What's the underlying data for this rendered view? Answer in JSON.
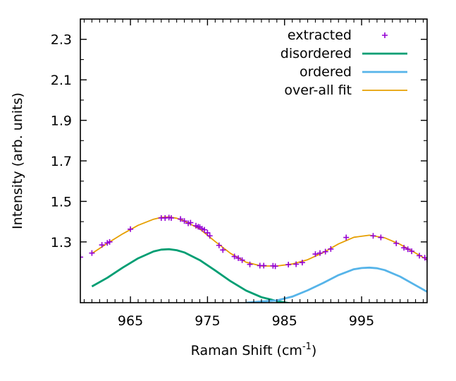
{
  "chart_data": {
    "type": "line",
    "xlabel": "Raman Shift (cm",
    "xlabel_sup": "-1",
    "xlabel_suffix": ")",
    "ylabel": "Intensity (arb. units)",
    "xlim": [
      958.5,
      1003.5
    ],
    "ylim": [
      1.0,
      2.4
    ],
    "xticks": [
      965,
      975,
      985,
      995
    ],
    "xtick_labels": [
      "965",
      "975",
      "985",
      "995"
    ],
    "yticks": [
      1.3,
      1.5,
      1.7,
      1.9,
      2.1,
      2.3
    ],
    "ytick_labels": [
      "1.3",
      "1.5",
      "1.7",
      "1.9",
      "2.1",
      "2.3"
    ],
    "legend_position": "top-right",
    "series": [
      {
        "name": "extracted",
        "kind": "scatter",
        "color": "#9400d3",
        "x": [
          958.5,
          960.0,
          961.3,
          962.0,
          962.3,
          965.0,
          969.0,
          969.5,
          970.0,
          970.3,
          971.5,
          972.0,
          972.5,
          972.8,
          973.5,
          973.8,
          974.0,
          974.3,
          974.6,
          975.0,
          975.3,
          976.5,
          977.0,
          978.5,
          979.0,
          979.5,
          980.5,
          981.8,
          982.3,
          983.5,
          983.8,
          985.5,
          986.5,
          987.3,
          989.0,
          989.6,
          990.3,
          991.0,
          993.0,
          996.5,
          997.5,
          999.5,
          1000.5,
          1001.0,
          1001.5,
          1002.5,
          1003.2,
          1003.5
        ],
        "y": [
          1.225,
          1.245,
          1.285,
          1.295,
          1.3,
          1.363,
          1.418,
          1.418,
          1.42,
          1.418,
          1.413,
          1.403,
          1.392,
          1.395,
          1.38,
          1.375,
          1.373,
          1.365,
          1.36,
          1.345,
          1.33,
          1.283,
          1.26,
          1.228,
          1.22,
          1.21,
          1.189,
          1.183,
          1.183,
          1.182,
          1.18,
          1.188,
          1.19,
          1.198,
          1.24,
          1.245,
          1.252,
          1.265,
          1.322,
          1.33,
          1.322,
          1.293,
          1.271,
          1.264,
          1.254,
          1.232,
          1.222,
          1.213
        ]
      },
      {
        "name": "disordered",
        "kind": "line",
        "color": "#009e73",
        "x": [
          960,
          962,
          964,
          966,
          968,
          969,
          970,
          971,
          972,
          974,
          976,
          978,
          980,
          982,
          984,
          986,
          988
        ],
        "y": [
          1.08,
          1.123,
          1.173,
          1.219,
          1.253,
          1.262,
          1.264,
          1.259,
          1.248,
          1.21,
          1.159,
          1.106,
          1.06,
          1.027,
          1.008,
          0.995,
          0.99
        ]
      },
      {
        "name": "ordered",
        "kind": "line",
        "color": "#56b4e9",
        "x": [
          980,
          982,
          984,
          986,
          988,
          990,
          992,
          994,
          995,
          996,
          997,
          998,
          1000,
          1002,
          1003.5
        ],
        "y": [
          1.0,
          1.006,
          1.011,
          1.03,
          1.061,
          1.097,
          1.136,
          1.165,
          1.171,
          1.173,
          1.17,
          1.161,
          1.129,
          1.086,
          1.054
        ]
      },
      {
        "name": "over-all fit",
        "kind": "line",
        "color": "#e69f00",
        "x": [
          960,
          962,
          964,
          966,
          968,
          969,
          970,
          971,
          972,
          974,
          976,
          978,
          980,
          982,
          984,
          986,
          988,
          990,
          992,
          994,
          996,
          998,
          1000,
          1002,
          1003.5
        ],
        "y": [
          1.243,
          1.293,
          1.34,
          1.382,
          1.412,
          1.421,
          1.423,
          1.417,
          1.403,
          1.364,
          1.302,
          1.243,
          1.2,
          1.181,
          1.181,
          1.191,
          1.212,
          1.247,
          1.29,
          1.323,
          1.333,
          1.32,
          1.288,
          1.245,
          1.212
        ]
      }
    ]
  }
}
